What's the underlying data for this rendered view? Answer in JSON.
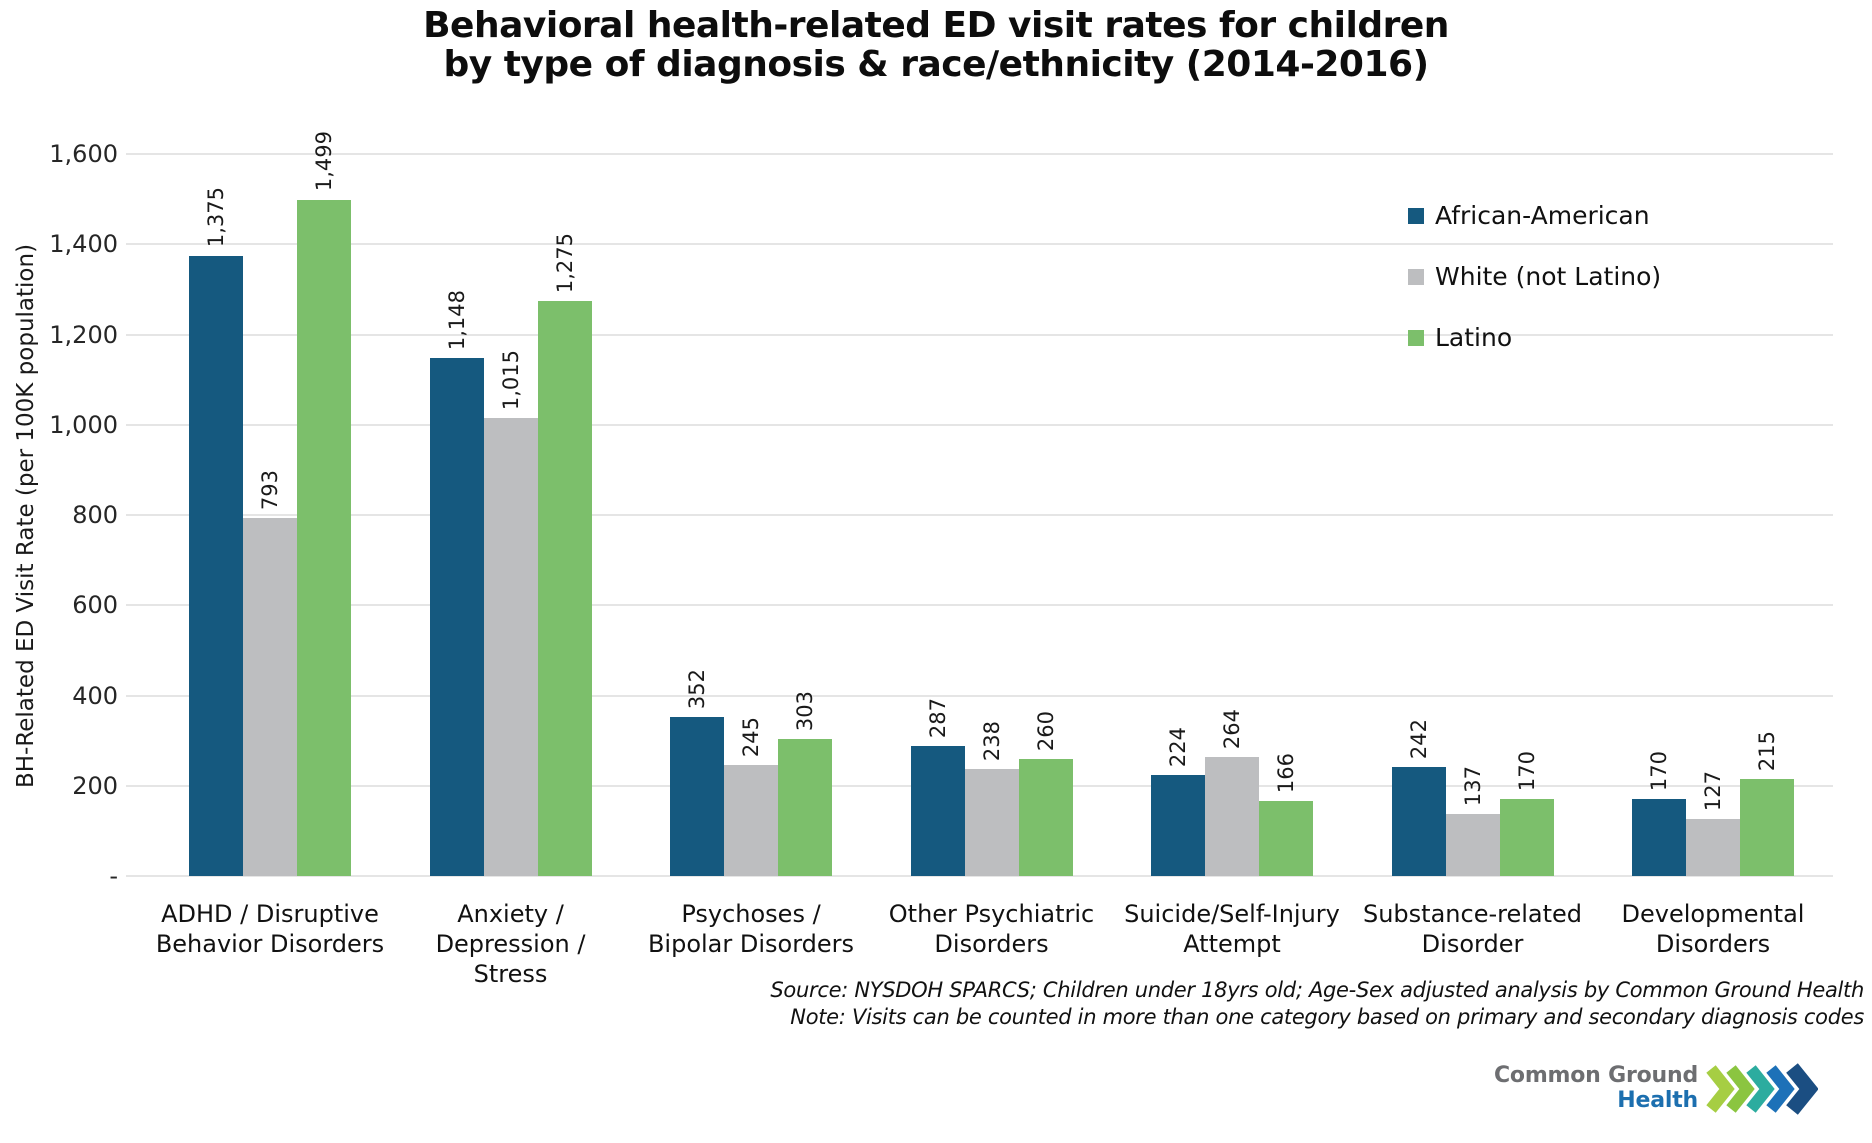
{
  "title": {
    "line1": "Behavioral health-related ED visit rates for children",
    "line2": "by type of diagnosis & race/ethnicity (2014-2016)"
  },
  "chart_data": {
    "type": "bar",
    "title": "Behavioral health-related ED visit rates for children by type of diagnosis & race/ethnicity (2014-2016)",
    "ylabel": "BH-Related ED Visit Rate (per 100K population)",
    "xlabel": "",
    "ylim": [
      0,
      1600
    ],
    "ytick_step": 200,
    "ytick_labels": [
      "-",
      "200",
      "400",
      "600",
      "800",
      "1,000",
      "1,200",
      "1,400",
      "1,600"
    ],
    "grid": true,
    "grid_color": "#E5E5E5",
    "legend_position": "upper right",
    "categories": [
      "ADHD / Disruptive\nBehavior Disorders",
      "Anxiety /\nDepression /\nStress",
      "Psychoses /\nBipolar Disorders",
      "Other Psychiatric\nDisorders",
      "Suicide/Self-Injury\nAttempt",
      "Substance-related\nDisorder",
      "Developmental\nDisorders"
    ],
    "series": [
      {
        "name": "African-American",
        "color": "#15597F",
        "values": [
          1375,
          1148,
          352,
          287,
          224,
          242,
          170
        ]
      },
      {
        "name": "White (not Latino)",
        "color": "#BDBEC0",
        "values": [
          793,
          1015,
          245,
          238,
          264,
          137,
          127
        ]
      },
      {
        "name": "Latino",
        "color": "#7CBF6B",
        "values": [
          1499,
          1275,
          303,
          260,
          166,
          170,
          215
        ]
      }
    ]
  },
  "footnotes": {
    "source": "Source: NYSDOH SPARCS; Children under 18yrs old; Age-Sex adjusted analysis by Common Ground Health",
    "note": "Note: Visits can be counted in more than one category based on primary and secondary diagnosis codes"
  },
  "logo": {
    "line1": "Common Ground",
    "line2": "Health",
    "text_gray": "#6D6E71",
    "text_blue": "#1C6FAF",
    "chevron_colors": [
      "#A6CE43",
      "#8BC540",
      "#2CAC9F",
      "#1D71B8",
      "#1B4E82"
    ]
  }
}
